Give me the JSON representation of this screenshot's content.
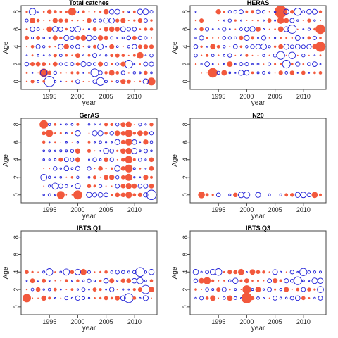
{
  "figure": {
    "colors": {
      "positive": "#f2593d",
      "negative": "#1f1fd6",
      "axis": "#444444"
    }
  },
  "chart_data": [
    {
      "type": "bubble",
      "title": "Total catches",
      "xlabel": "year",
      "ylabel": "Age",
      "xlim": [
        1990,
        2014
      ],
      "ylim": [
        -0.9,
        8.7
      ],
      "xticks": [
        1995,
        2000,
        2005,
        2010
      ],
      "yticks": [
        0,
        2,
        4,
        6,
        8
      ],
      "years": [
        1991,
        2013
      ],
      "ages": [
        0,
        8
      ],
      "seed": 11,
      "pos_bias": 0.55,
      "big": [
        {
          "x": 1995,
          "y": 0,
          "r": 0.9,
          "sign": "neg"
        },
        {
          "x": 1994,
          "y": 1,
          "r": 0.75,
          "sign": "pos"
        },
        {
          "x": 1994,
          "y": 1,
          "r": 0.6,
          "sign": "neg"
        },
        {
          "x": 2003,
          "y": 1,
          "r": 0.7,
          "sign": "neg"
        },
        {
          "x": 2009,
          "y": 2,
          "r": 0.7,
          "sign": "neg"
        },
        {
          "x": 2004,
          "y": 0,
          "r": 0.7,
          "sign": "neg"
        },
        {
          "x": 2011,
          "y": 3,
          "r": 0.6,
          "sign": "pos"
        },
        {
          "x": 1999,
          "y": 8,
          "r": 0.7,
          "sign": "pos"
        },
        {
          "x": 2013,
          "y": 0,
          "r": 0.7,
          "sign": "pos"
        },
        {
          "x": 1992,
          "y": 8,
          "r": 0.6,
          "sign": "neg"
        },
        {
          "x": 2012,
          "y": 8,
          "r": 0.5,
          "sign": "neg"
        }
      ]
    },
    {
      "type": "bubble",
      "title": "HERAS",
      "xlabel": "year",
      "ylabel": "Age",
      "xlim": [
        1990,
        2014
      ],
      "ylim": [
        -0.9,
        8.7
      ],
      "xticks": [
        1995,
        2000,
        2005,
        2010
      ],
      "yticks": [
        0,
        2,
        4,
        6,
        8
      ],
      "years": [
        1991,
        2013
      ],
      "ages": [
        1,
        8
      ],
      "skip_cells": [
        [
          1991,
          1
        ],
        [
          1992,
          8
        ],
        [
          1993,
          8
        ],
        [
          1994,
          8
        ],
        [
          1993,
          7
        ],
        [
          1994,
          7
        ]
      ],
      "seed": 23,
      "pos_bias": 0.5,
      "big": [
        {
          "x": 2006,
          "y": 8,
          "r": 1.1,
          "sign": "pos"
        },
        {
          "x": 2006,
          "y": 7,
          "r": 0.6,
          "sign": "pos"
        },
        {
          "x": 2013,
          "y": 6,
          "r": 0.85,
          "sign": "pos"
        },
        {
          "x": 2013,
          "y": 4,
          "r": 0.9,
          "sign": "pos"
        },
        {
          "x": 2008,
          "y": 6,
          "r": 0.75,
          "sign": "neg"
        },
        {
          "x": 2006,
          "y": 3,
          "r": 0.7,
          "sign": "neg"
        },
        {
          "x": 2007,
          "y": 2,
          "r": 0.7,
          "sign": "neg"
        },
        {
          "x": 1994,
          "y": 1,
          "r": 0.85,
          "sign": "pos"
        },
        {
          "x": 2009,
          "y": 8,
          "r": 0.65,
          "sign": "neg"
        },
        {
          "x": 2008,
          "y": 3,
          "r": 0.6,
          "sign": "neg"
        }
      ]
    },
    {
      "type": "bubble",
      "title": "GerAS",
      "xlabel": "year",
      "ylabel": "Age",
      "xlim": [
        1990,
        2014
      ],
      "ylim": [
        -0.9,
        8.7
      ],
      "xticks": [
        1995,
        2000,
        2005,
        2010
      ],
      "yticks": [
        0,
        2,
        4,
        6,
        8
      ],
      "years": [
        1994,
        2013
      ],
      "ages": [
        0,
        8
      ],
      "skip_years": [
        2001
      ],
      "seed": 37,
      "pos_bias": 0.45,
      "col_pos": [
        {
          "x": 2009,
          "r": 0.65
        },
        {
          "x": 2008,
          "r": 0.45
        }
      ],
      "big": [
        {
          "x": 1994,
          "y": 8,
          "r": 0.75,
          "sign": "pos"
        },
        {
          "x": 2000,
          "y": 0,
          "r": 0.8,
          "sign": "pos"
        },
        {
          "x": 2013,
          "y": 0,
          "r": 0.85,
          "sign": "neg"
        },
        {
          "x": 1997,
          "y": 0,
          "r": 0.7,
          "sign": "pos"
        },
        {
          "x": 1995,
          "y": 7,
          "r": 0.65,
          "sign": "pos"
        },
        {
          "x": 1996,
          "y": 1,
          "r": 0.55,
          "sign": "neg"
        },
        {
          "x": 1994,
          "y": 2,
          "r": 0.55,
          "sign": "neg"
        }
      ]
    },
    {
      "type": "bubble",
      "title": "N20",
      "xlabel": "year",
      "ylabel": "Age",
      "xlim": [
        1990,
        2014
      ],
      "ylim": [
        -0.9,
        8.7
      ],
      "xticks": [
        1995,
        2000,
        2005,
        2010
      ],
      "yticks": [
        0,
        2,
        4,
        6,
        8
      ],
      "explicit": [
        {
          "x": 1992,
          "y": 0,
          "r": 0.6,
          "sign": "pos"
        },
        {
          "x": 1993,
          "y": 0,
          "r": 0.3,
          "sign": "pos"
        },
        {
          "x": 1994,
          "y": 0,
          "r": 0.2,
          "sign": "pos"
        },
        {
          "x": 1995,
          "y": 0,
          "r": 0.35,
          "sign": "neg"
        },
        {
          "x": 1997,
          "y": 0,
          "r": 0.2,
          "sign": "neg"
        },
        {
          "x": 1998,
          "y": 0,
          "r": 0.4,
          "sign": "pos"
        },
        {
          "x": 1999,
          "y": 0,
          "r": 0.5,
          "sign": "neg"
        },
        {
          "x": 2000,
          "y": 0,
          "r": 0.55,
          "sign": "neg"
        },
        {
          "x": 2002,
          "y": 0,
          "r": 0.45,
          "sign": "neg"
        },
        {
          "x": 2004,
          "y": 0,
          "r": 0.2,
          "sign": "neg"
        },
        {
          "x": 2006,
          "y": 0,
          "r": 0.2,
          "sign": "neg"
        },
        {
          "x": 2007,
          "y": 0,
          "r": 0.3,
          "sign": "pos"
        },
        {
          "x": 2008,
          "y": 0,
          "r": 0.35,
          "sign": "pos"
        },
        {
          "x": 2009,
          "y": 0,
          "r": 0.45,
          "sign": "neg"
        },
        {
          "x": 2010,
          "y": 0,
          "r": 0.5,
          "sign": "neg"
        },
        {
          "x": 2011,
          "y": 0,
          "r": 0.35,
          "sign": "neg"
        },
        {
          "x": 2012,
          "y": 0,
          "r": 0.55,
          "sign": "pos"
        },
        {
          "x": 2013,
          "y": 0,
          "r": 0.25,
          "sign": "pos"
        }
      ]
    },
    {
      "type": "bubble",
      "title": "IBTS Q1",
      "xlabel": "year",
      "ylabel": "Age",
      "xlim": [
        1990,
        2014
      ],
      "ylim": [
        -0.9,
        8.7
      ],
      "xticks": [
        1995,
        2000,
        2005,
        2010
      ],
      "yticks": [
        0,
        2,
        4,
        6,
        8
      ],
      "years": [
        1991,
        2013
      ],
      "ages": [
        1,
        4
      ],
      "seed": 53,
      "pos_bias": 0.5,
      "big": [
        {
          "x": 1991,
          "y": 1,
          "r": 0.75,
          "sign": "pos"
        },
        {
          "x": 2009,
          "y": 1,
          "r": 0.8,
          "sign": "neg"
        },
        {
          "x": 2011,
          "y": 4,
          "r": 0.8,
          "sign": "neg"
        },
        {
          "x": 2012,
          "y": 2,
          "r": 0.75,
          "sign": "neg"
        },
        {
          "x": 1995,
          "y": 4,
          "r": 0.6,
          "sign": "neg"
        },
        {
          "x": 1998,
          "y": 4,
          "r": 0.55,
          "sign": "neg"
        },
        {
          "x": 2011,
          "y": 3,
          "r": 0.55,
          "sign": "neg"
        },
        {
          "x": 2001,
          "y": 4,
          "r": 0.55,
          "sign": "pos"
        }
      ]
    },
    {
      "type": "bubble",
      "title": "IBTS Q3",
      "xlabel": "year",
      "ylabel": "Age",
      "xlim": [
        1990,
        2014
      ],
      "ylim": [
        -0.9,
        8.7
      ],
      "xticks": [
        1995,
        2000,
        2005,
        2010
      ],
      "yticks": [
        0,
        2,
        4,
        6,
        8
      ],
      "years": [
        1991,
        2013
      ],
      "ages": [
        1,
        4
      ],
      "seed": 71,
      "pos_bias": 0.5,
      "big": [
        {
          "x": 2000,
          "y": 1,
          "r": 0.95,
          "sign": "pos"
        },
        {
          "x": 2000,
          "y": 2,
          "r": 0.75,
          "sign": "pos"
        },
        {
          "x": 1993,
          "y": 3,
          "r": 0.65,
          "sign": "pos"
        },
        {
          "x": 1999,
          "y": 4,
          "r": 0.55,
          "sign": "pos"
        },
        {
          "x": 2009,
          "y": 3,
          "r": 0.7,
          "sign": "neg"
        },
        {
          "x": 2010,
          "y": 4,
          "r": 0.65,
          "sign": "neg"
        },
        {
          "x": 1995,
          "y": 4,
          "r": 0.6,
          "sign": "neg"
        },
        {
          "x": 2013,
          "y": 2,
          "r": 0.55,
          "sign": "neg"
        },
        {
          "x": 2012,
          "y": 3,
          "r": 0.5,
          "sign": "neg"
        }
      ]
    }
  ]
}
